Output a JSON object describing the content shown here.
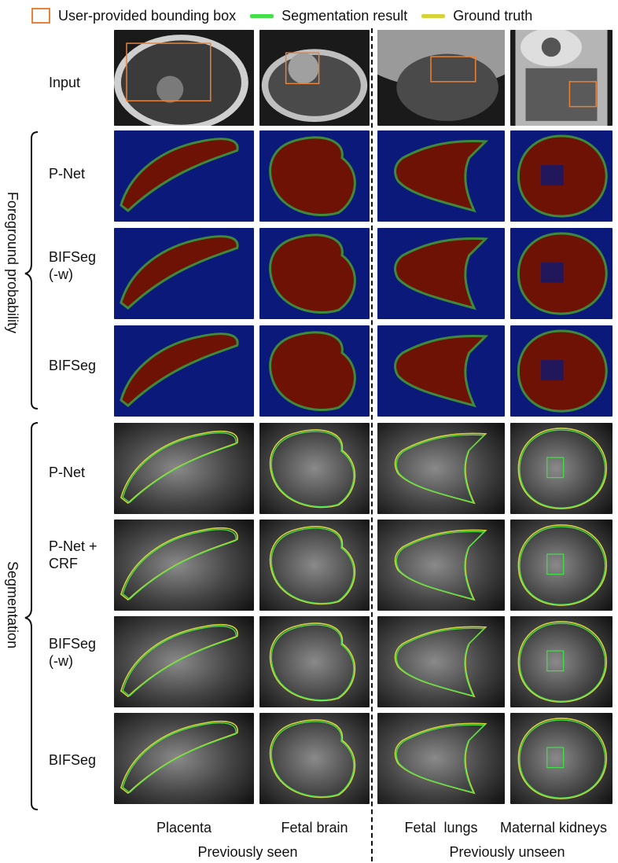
{
  "legend": {
    "bbox_label": "User-provided bounding box",
    "seg_label": "Segmentation result",
    "gt_label": "Ground truth",
    "bbox_color": "#E8823A",
    "seg_color": "#44E04A",
    "gt_color": "#D6D33A"
  },
  "rows": {
    "input": "Input",
    "fg": [
      "P-Net",
      "BIFSeg (-w)",
      "BIFSeg"
    ],
    "seg": [
      "P-Net",
      "P-Net + CRF",
      "BIFSeg (-w)",
      "BIFSeg"
    ]
  },
  "row_lines": {
    "fg_1_a": "BIFSeg",
    "fg_1_b": "(-w)",
    "seg_1_a": "P-Net +",
    "seg_1_b": "CRF",
    "seg_2_a": "BIFSeg",
    "seg_2_b": "(-w)"
  },
  "groups": {
    "foreground": "Foreground probability",
    "segmentation": "Segmentation"
  },
  "columns": [
    "Placenta",
    "Fetal brain",
    "Fetal  lungs",
    "Maternal kidneys"
  ],
  "sections": {
    "seen": "Previously seen",
    "unseen": "Previously unseen"
  },
  "colors": {
    "prob_background": "#0B1A7A",
    "prob_foreground": "#6E1206",
    "prob_edge": "#3E8A3A"
  }
}
